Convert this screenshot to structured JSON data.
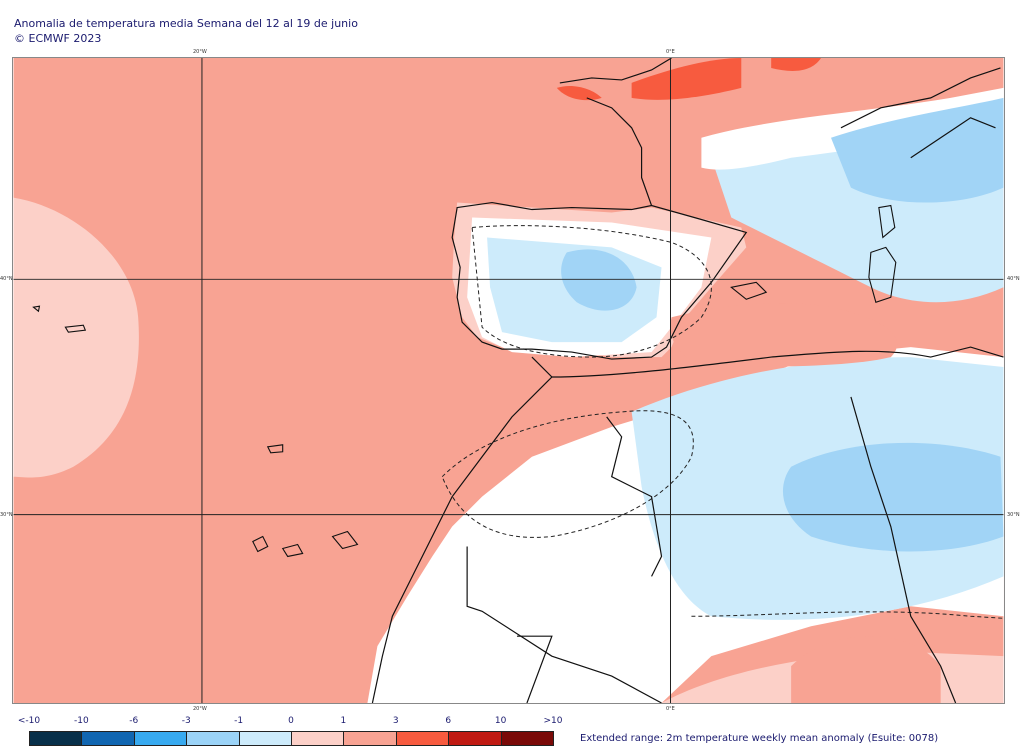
{
  "header": {
    "title": "Anomalia de temperatura media Semana del 12 al 19 de junio",
    "copyright": "© ECMWF 2023"
  },
  "map": {
    "lon_labels": [
      "20°W",
      "0°E"
    ],
    "lat_labels": [
      "40°N",
      "30°N"
    ],
    "colors": {
      "warm_1": "#fcd0c8",
      "warm_2": "#f8a393",
      "warm_3": "#f75b3f",
      "cool_1": "#cdebfb",
      "cool_2": "#a1d4f6",
      "cool_3": "#5fb6ef",
      "neutral": "#ffffff"
    }
  },
  "legend": {
    "labels": [
      "<-10",
      "-10",
      "-6",
      "-3",
      "-1",
      "0",
      "1",
      "3",
      "6",
      "10",
      ">10"
    ],
    "colors": [
      "#08304a",
      "#1166b1",
      "#38aaf0",
      "#9bd3f7",
      "#cdebfb",
      "#fcd0c8",
      "#f8a393",
      "#f75b3f",
      "#c01a12",
      "#7a0a08"
    ],
    "caption": "Extended range: 2m temperature weekly mean anomaly (Esuite: 0078)"
  }
}
